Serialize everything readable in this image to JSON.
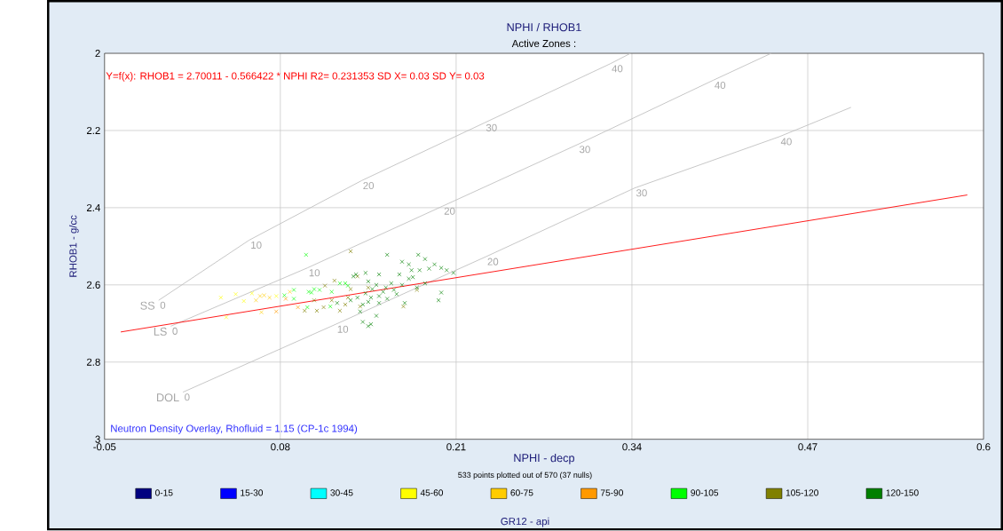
{
  "chart_data": {
    "type": "scatter",
    "title": "NPHI / RHOB1",
    "subtitle": "Active Zones :",
    "xlabel": "NPHI - decp",
    "ylabel": "RHOB1 - g/cc",
    "legend_title": "GR12 - api",
    "legend": "bottom",
    "grid": true,
    "marker": "cross",
    "xlim": [
      -0.05,
      0.6
    ],
    "xticks": [
      -0.05,
      0.08,
      0.21,
      0.34,
      0.47,
      0.6
    ],
    "ylim": [
      3,
      2
    ],
    "yticks": [
      2,
      2.2,
      2.4,
      2.6,
      2.8,
      3
    ],
    "annotations": [
      "Y=f(x): RHOB1 = 2.70011  -  0.566422 * NPHI   R2= 0.231353 SD X= 0.03 SD Y= 0.03",
      "Neutron Density Overlay, Rhofluid = 1.15 (CP-1c 1994)",
      "533 points plotted out of 570 (37 nulls)",
      {
        "text": "0",
        "x": -0.01,
        "y": 2.64
      },
      {
        "text": "10",
        "x": 0.057,
        "y": 2.484
      },
      {
        "text": "20",
        "x": 0.14,
        "y": 2.33
      },
      {
        "text": "30",
        "x": 0.231,
        "y": 2.18
      },
      {
        "text": "40",
        "x": 0.324,
        "y": 2.027
      },
      {
        "text": "0",
        "x": -0.001,
        "y": 2.707
      },
      {
        "text": "10",
        "x": 0.1,
        "y": 2.556
      },
      {
        "text": "20",
        "x": 0.2,
        "y": 2.396
      },
      {
        "text": "30",
        "x": 0.3,
        "y": 2.236
      },
      {
        "text": "40",
        "x": 0.4,
        "y": 2.07
      },
      {
        "text": "0",
        "x": 0.008,
        "y": 2.878
      },
      {
        "text": "10",
        "x": 0.121,
        "y": 2.702
      },
      {
        "text": "20",
        "x": 0.232,
        "y": 2.527
      },
      {
        "text": "30",
        "x": 0.342,
        "y": 2.349
      },
      {
        "text": "40",
        "x": 0.449,
        "y": 2.216
      }
    ],
    "series": [
      {
        "name": "0-15",
        "color": "#000080"
      },
      {
        "name": "15-30",
        "color": "#0000ff"
      },
      {
        "name": "30-45",
        "color": "#00ffff"
      },
      {
        "name": "45-60",
        "color": "#ffff00",
        "x": [
          0.036,
          0.047,
          0.053,
          0.04,
          0.059,
          0.077
        ],
        "values": [
          2.633,
          2.624,
          2.642,
          2.684,
          2.622,
          2.629
        ]
      },
      {
        "name": "60-75",
        "color": "#ffcc00",
        "x": [
          0.065,
          0.068,
          0.062,
          0.066,
          0.072,
          0.087
        ],
        "values": [
          2.629,
          2.627,
          2.64,
          2.671,
          2.633,
          2.618
        ]
      },
      {
        "name": "75-90",
        "color": "#ff9900",
        "x": [
          0.084,
          0.093,
          0.077
        ],
        "values": [
          2.636,
          2.658,
          2.669
        ]
      },
      {
        "name": "90-105",
        "color": "#00ff00",
        "x": [
          0.099,
          0.09,
          0.09,
          0.083,
          0.103,
          0.109,
          0.105,
          0.1,
          0.117,
          0.124,
          0.128,
          0.118,
          0.101,
          0.13
        ],
        "values": [
          2.522,
          2.613,
          2.636,
          2.627,
          2.62,
          2.613,
          2.611,
          2.658,
          2.656,
          2.596,
          2.596,
          2.618,
          2.618,
          2.602
        ]
      },
      {
        "name": "105-120",
        "color": "#808000",
        "x": [
          0.132,
          0.098,
          0.107,
          0.112,
          0.113,
          0.12,
          0.124,
          0.128,
          0.132,
          0.13,
          0.137,
          0.139,
          0.145,
          0.171,
          0.118,
          0.105,
          0.181
        ],
        "values": [
          2.513,
          2.667,
          2.667,
          2.658,
          2.602,
          2.589,
          2.667,
          2.651,
          2.611,
          2.633,
          2.578,
          2.656,
          2.607,
          2.656,
          2.64,
          2.64,
          2.613
        ]
      },
      {
        "name": "120-150",
        "color": "#008000",
        "x": [
          0.159,
          0.182,
          0.17,
          0.175,
          0.187,
          0.194,
          0.199,
          0.208,
          0.183,
          0.175,
          0.168,
          0.187,
          0.181,
          0.199,
          0.197,
          0.153,
          0.143,
          0.136,
          0.145,
          0.151,
          0.158,
          0.164,
          0.143,
          0.147,
          0.145,
          0.141,
          0.153,
          0.159,
          0.166,
          0.137,
          0.132,
          0.139,
          0.141,
          0.145,
          0.147,
          0.151,
          0.153,
          0.172,
          0.156,
          0.178,
          0.19,
          0.203,
          0.122,
          0.134,
          0.148,
          0.162,
          0.17,
          0.177
        ],
        "values": [
          2.522,
          2.522,
          2.54,
          2.547,
          2.533,
          2.547,
          2.556,
          2.569,
          2.562,
          2.584,
          2.573,
          2.596,
          2.607,
          2.62,
          2.64,
          2.573,
          2.569,
          2.573,
          2.591,
          2.6,
          2.607,
          2.613,
          2.622,
          2.633,
          2.644,
          2.651,
          2.629,
          2.636,
          2.624,
          2.633,
          2.64,
          2.669,
          2.696,
          2.707,
          2.702,
          2.68,
          2.647,
          2.647,
          2.618,
          2.58,
          2.558,
          2.562,
          2.647,
          2.578,
          2.611,
          2.596,
          2.6,
          2.562
        ]
      },
      {
        "name": "SS",
        "type": "line",
        "marker": "none",
        "color": "#c0c0c0",
        "x": [
          -0.01,
          0.057,
          0.14,
          0.231,
          0.324,
          0.339
        ],
        "values": [
          2.64,
          2.484,
          2.33,
          2.18,
          2.027,
          2.0
        ]
      },
      {
        "name": "LS",
        "type": "line",
        "marker": "none",
        "color": "#c0c0c0",
        "x": [
          -0.001,
          0.1,
          0.2,
          0.3,
          0.4,
          0.443
        ],
        "values": [
          2.707,
          2.556,
          2.396,
          2.236,
          2.07,
          2.0
        ]
      },
      {
        "name": "DOL",
        "type": "line",
        "marker": "none",
        "color": "#c0c0c0",
        "x": [
          0.008,
          0.121,
          0.232,
          0.342,
          0.449,
          0.502
        ],
        "values": [
          2.878,
          2.702,
          2.527,
          2.349,
          2.216,
          2.14
        ]
      },
      {
        "type": "line",
        "marker": "none",
        "color": "#ff0000",
        "x": [
          -0.038,
          0.588
        ],
        "values": [
          2.722,
          2.367
        ]
      }
    ]
  }
}
